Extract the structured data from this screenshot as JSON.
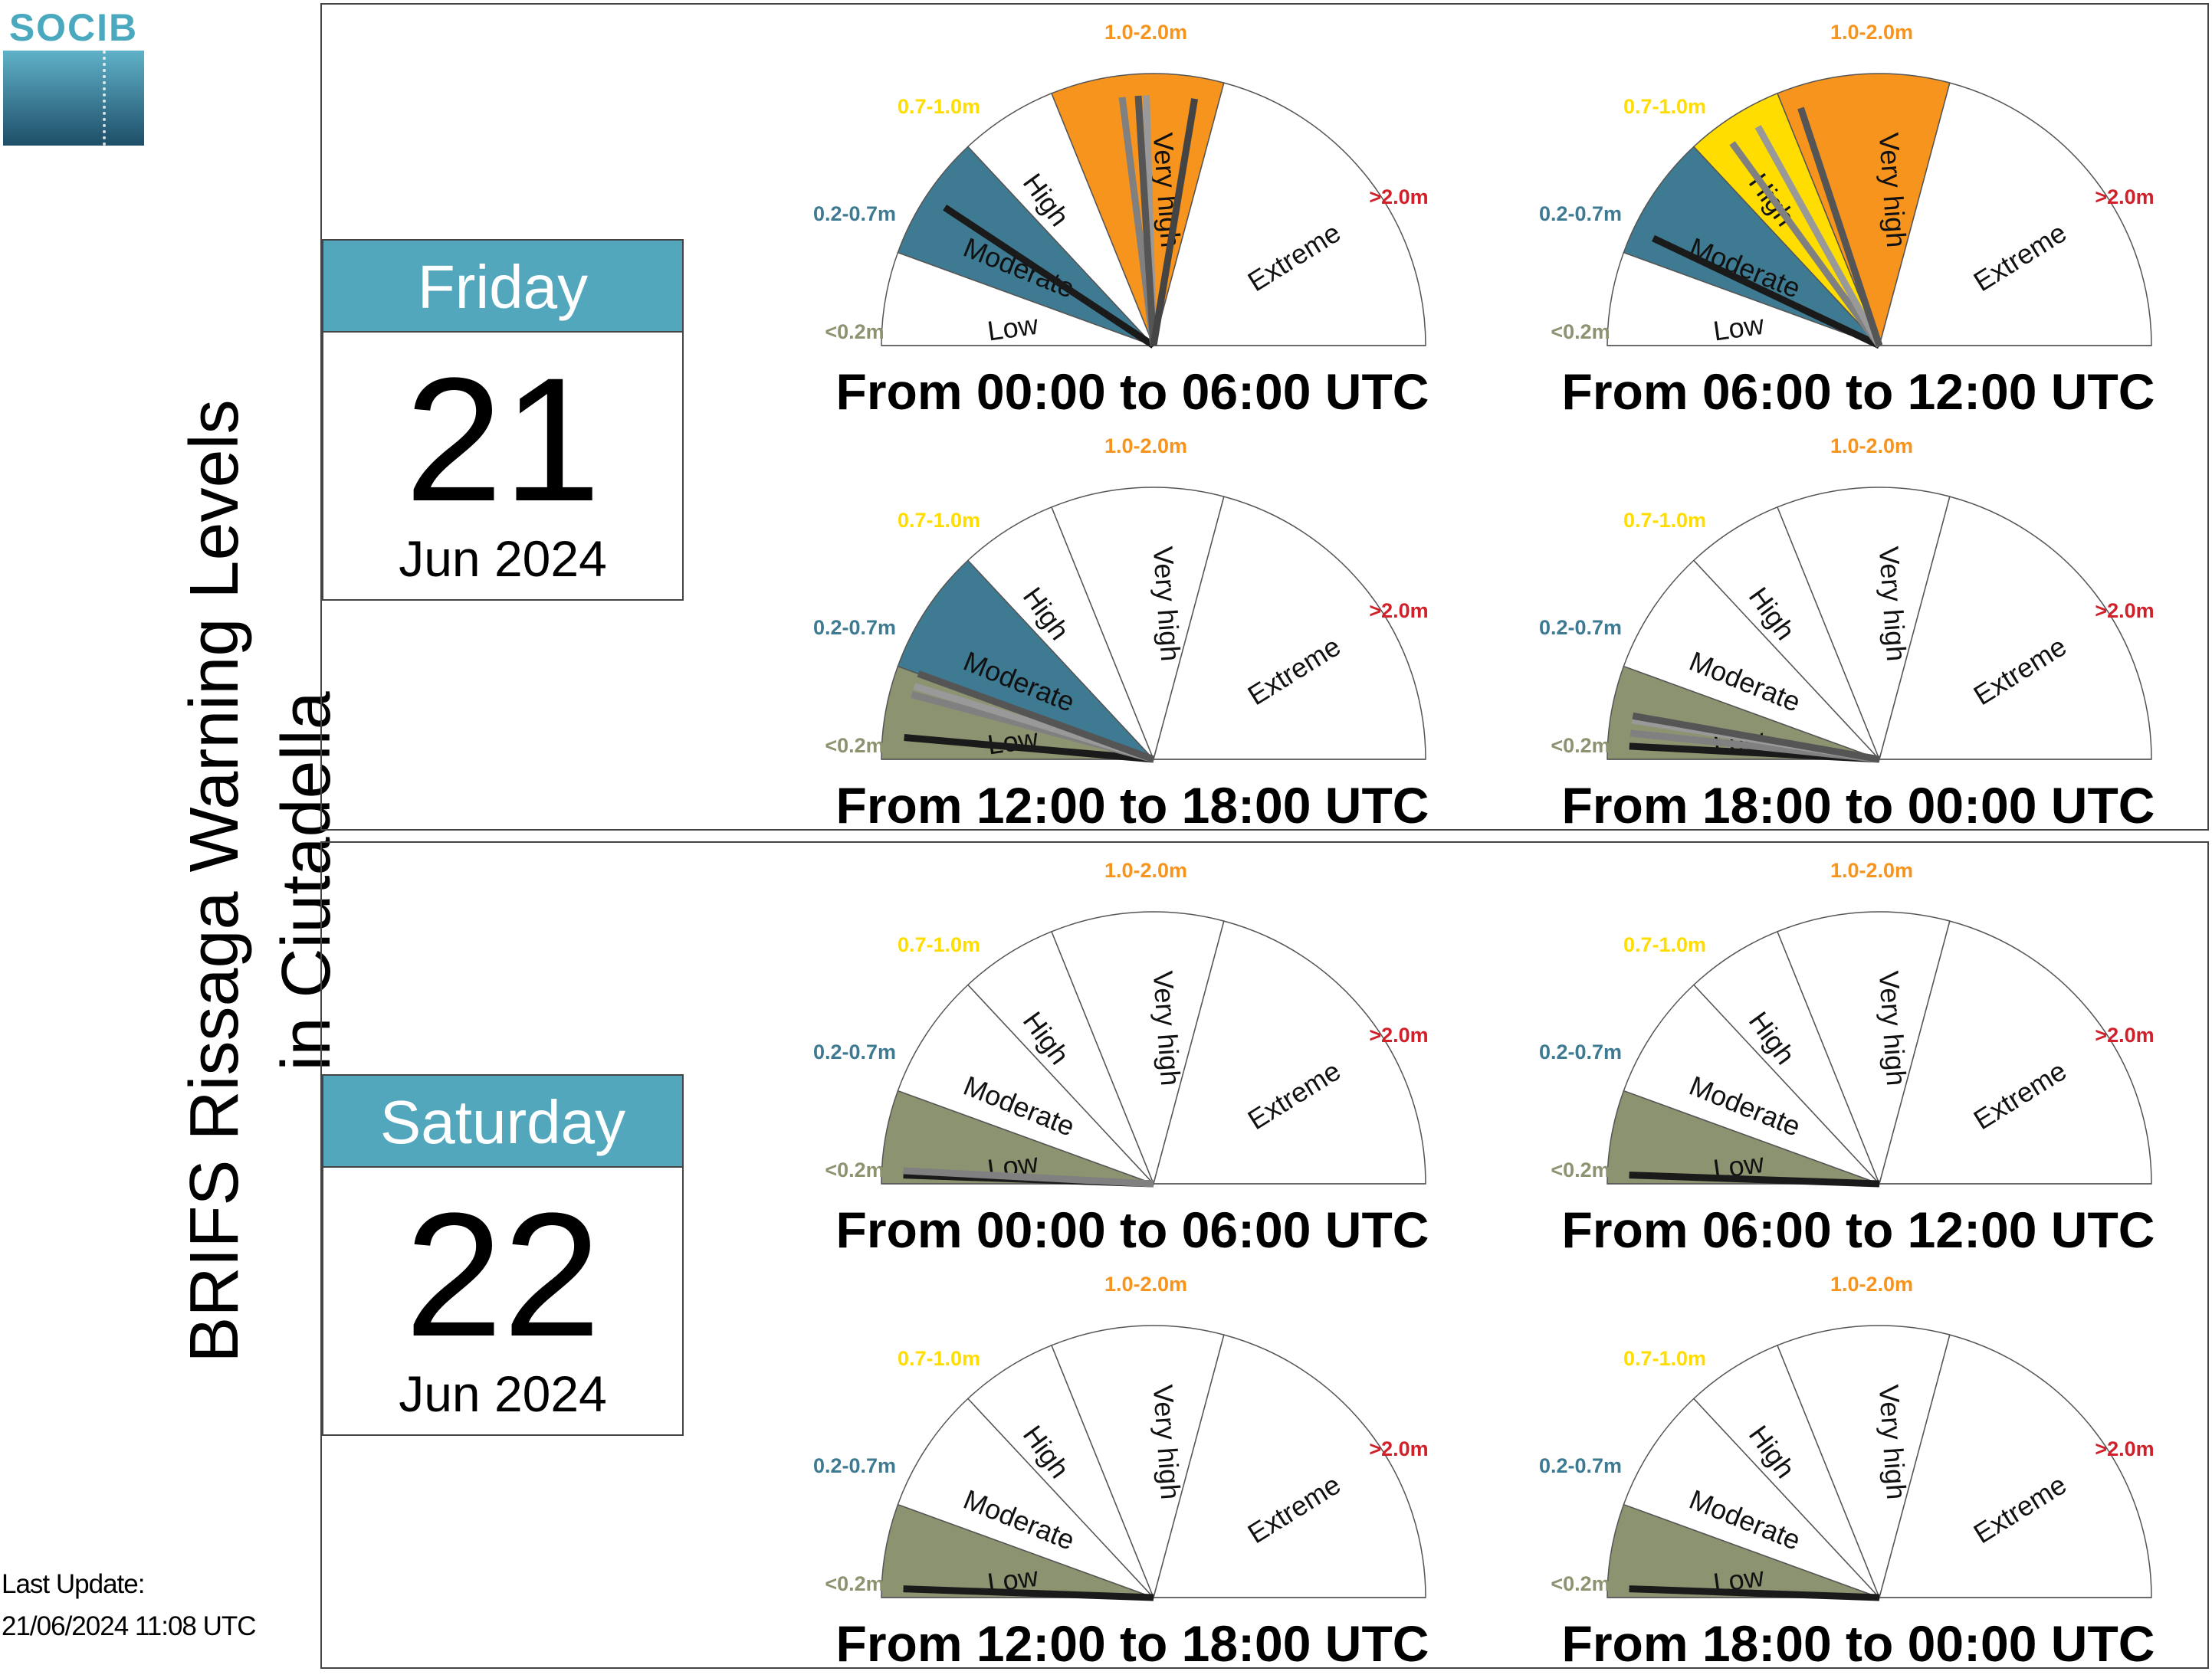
{
  "logo": {
    "text": "SOCIB",
    "icon": "socib-logo"
  },
  "title": {
    "line1": "BRIFS Rissaga Warning Levels",
    "line2": "in Ciutadella"
  },
  "last_update": {
    "label": "Last Update:",
    "value": "21/06/2024 11:08 UTC"
  },
  "colors": {
    "low": "#8c9370",
    "moderate": "#3e7a92",
    "high": "#ffdd00",
    "very_high": "#f7941d",
    "extreme": "#d0202a",
    "header": "#52a7bd"
  },
  "sectors": [
    {
      "label": "Low",
      "range": "<0.2m",
      "range_color": "#8c9370",
      "fill_color": "#8c9370",
      "from": 0,
      "to": 0.2
    },
    {
      "label": "Moderate",
      "range": "0.2-0.7m",
      "range_color": "#3e7a92",
      "fill_color": "#3e7a92",
      "from": 0.2,
      "to": 0.7
    },
    {
      "label": "High",
      "range": "0.7-1.0m",
      "range_color": "#ffdd00",
      "fill_color": "#ffdd00",
      "from": 0.7,
      "to": 1.0
    },
    {
      "label": "Very high",
      "range": "1.0-2.0m",
      "range_color": "#f7941d",
      "fill_color": "#f7941d",
      "from": 1.0,
      "to": 2.0
    },
    {
      "label": "Extreme",
      "range": ">2.0m",
      "range_color": "#d0202a",
      "fill_color": "#d0202a",
      "from": 2.0,
      "to": 3.0
    }
  ],
  "days": [
    {
      "day_name": "Friday",
      "day_number": "21",
      "month_year": "Jun 2024",
      "periods": [
        {
          "label": "From 00:00 to 06:00 UTC",
          "active": [
            1,
            3
          ],
          "needles_m": [
            0.45,
            1.4,
            1.55,
            1.5,
            1.85
          ]
        },
        {
          "label": "From 06:00 to 12:00 UTC",
          "active": [
            1,
            3
          ],
          "needles_m": [
            0.3,
            0.8,
            0.9,
            1.1
          ]
        },
        {
          "label": "From 12:00 to 18:00 UTC",
          "active": [
            0,
            1
          ],
          "needles_m": [
            0.05,
            0.15,
            0.17,
            0.2
          ]
        },
        {
          "label": "From 18:00 to 00:00 UTC",
          "active": [
            0,
            0
          ],
          "needles_m": [
            0.03,
            0.06,
            0.09,
            0.1
          ]
        }
      ]
    },
    {
      "day_name": "Saturday",
      "day_number": "22",
      "month_year": "Jun 2024",
      "periods": [
        {
          "label": "From 00:00 to 06:00 UTC",
          "active": [
            0,
            0
          ],
          "needles_m": [
            0.02,
            0.03
          ]
        },
        {
          "label": "From 06:00 to 12:00 UTC",
          "active": [
            0,
            0
          ],
          "needles_m": [
            0.02
          ]
        },
        {
          "label": "From 12:00 to 18:00 UTC",
          "active": [
            0,
            0
          ],
          "needles_m": [
            0.02
          ]
        },
        {
          "label": "From 18:00 to 00:00 UTC",
          "active": [
            0,
            0
          ],
          "needles_m": [
            0.02
          ]
        }
      ]
    }
  ]
}
